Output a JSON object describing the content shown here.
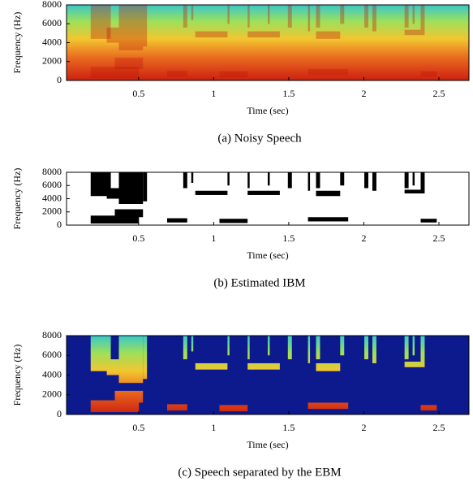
{
  "chart_data": [
    {
      "type": "heatmap",
      "style": "spectrogram",
      "caption": "(a) Noisy Speech",
      "xlabel": "Time (sec)",
      "ylabel": "Frequency (Hz)",
      "xlim": [
        0.02,
        2.7
      ],
      "ylim": [
        0,
        8000
      ],
      "xticks": [
        0.5,
        1,
        1.5,
        2,
        2.5
      ],
      "yticks": [
        0,
        2000,
        4000,
        6000,
        8000
      ]
    },
    {
      "type": "heatmap",
      "style": "mask",
      "caption": "(b) Estimated IBM",
      "xlabel": "Time (sec)",
      "ylabel": "Frequency (Hz)",
      "xlim": [
        0.02,
        2.7
      ],
      "ylim": [
        0,
        8000
      ],
      "xticks": [
        0.5,
        1,
        1.5,
        2,
        2.5
      ],
      "yticks": [
        0,
        2000,
        4000,
        6000,
        8000
      ]
    },
    {
      "type": "heatmap",
      "style": "masked",
      "caption": "(c) Speech separated by the EBM",
      "xlabel": "Time (sec)",
      "ylabel": "Frequency (Hz)",
      "xlim": [
        0.02,
        2.7
      ],
      "ylim": [
        0,
        8000
      ],
      "xticks": [
        0.5,
        1,
        1.5,
        2,
        2.5
      ],
      "yticks": [
        0,
        2000,
        4000,
        6000,
        8000
      ]
    }
  ]
}
